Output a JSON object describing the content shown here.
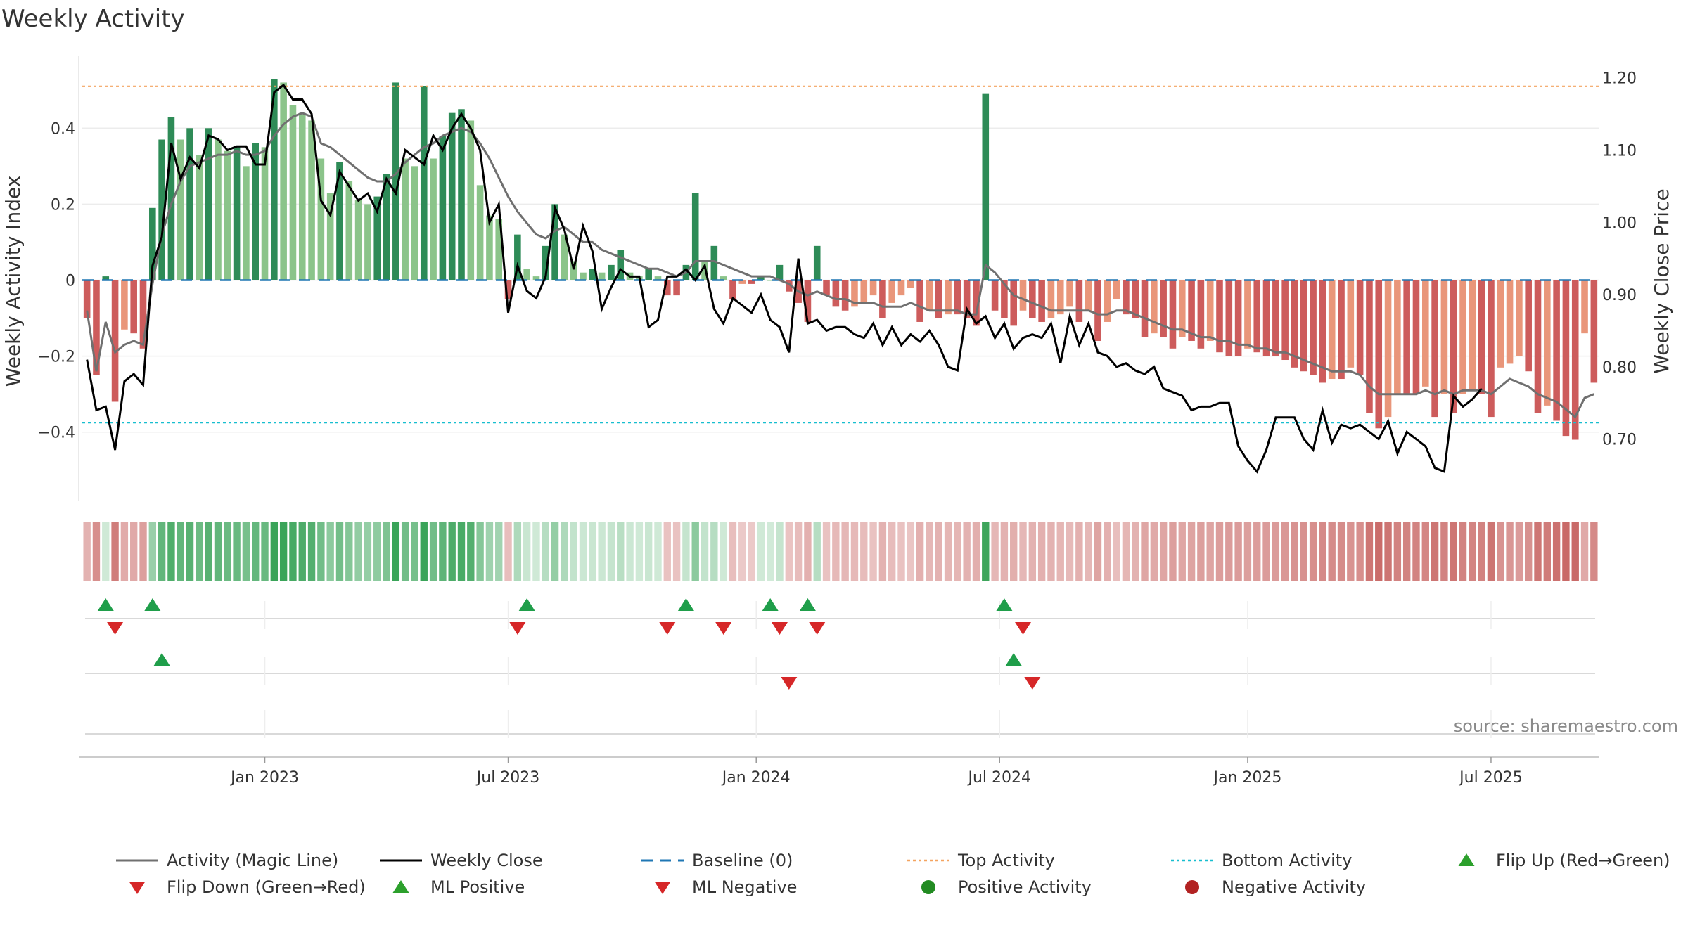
{
  "chart_data": {
    "type": "bar",
    "title": "Weekly Activity",
    "source": "source: sharemaestro.com",
    "ylabel": "Weekly Activity Index",
    "y2label": "Weekly Close Price",
    "ylim": [
      -0.58,
      0.58
    ],
    "y2lim": [
      0.615,
      1.225
    ],
    "yticks": [
      {
        "value": 0.4,
        "label": "0.4"
      },
      {
        "value": 0.2,
        "label": "0.2"
      },
      {
        "value": 0,
        "label": "0"
      },
      {
        "value": -0.2,
        "label": "−0.2"
      },
      {
        "value": -0.4,
        "label": "−0.4"
      }
    ],
    "y2ticks": [
      {
        "value": 1.2,
        "label": "1.20"
      },
      {
        "value": 1.1,
        "label": "1.10"
      },
      {
        "value": 1.0,
        "label": "1.00"
      },
      {
        "value": 0.9,
        "label": "0.90"
      },
      {
        "value": 0.8,
        "label": "0.80"
      },
      {
        "value": 0.7,
        "label": "0.70"
      }
    ],
    "xticks": [
      {
        "week": 19,
        "label": "Jan 2023"
      },
      {
        "week": 45,
        "label": "Jul 2023"
      },
      {
        "week": 71.5,
        "label": "Jan 2024"
      },
      {
        "week": 97.5,
        "label": "Jul 2024"
      },
      {
        "week": 124,
        "label": "Jan 2025"
      },
      {
        "week": 150,
        "label": "Jul 2025"
      }
    ],
    "top_activity": 0.51,
    "bottom_activity": -0.375,
    "baseline": 0,
    "activity": [
      -0.1,
      -0.25,
      0.01,
      -0.32,
      -0.13,
      -0.14,
      -0.18,
      0.19,
      0.37,
      0.43,
      0.37,
      0.4,
      0.33,
      0.4,
      0.37,
      0.34,
      0.35,
      0.3,
      0.36,
      0.35,
      0.53,
      0.52,
      0.46,
      0.44,
      0.42,
      0.32,
      0.23,
      0.31,
      0.26,
      0.21,
      0.2,
      0.22,
      0.28,
      0.52,
      0.32,
      0.3,
      0.51,
      0.32,
      0.38,
      0.44,
      0.45,
      0.42,
      0.25,
      0.17,
      0.16,
      -0.05,
      0.12,
      0.03,
      0.01,
      0.09,
      0.2,
      0.12,
      0.05,
      0.02,
      0.03,
      0.02,
      0.04,
      0.08,
      0.02,
      0.01,
      0.03,
      0.01,
      -0.04,
      -0.04,
      0.04,
      0.23,
      0.05,
      0.09,
      0.01,
      -0.05,
      -0.01,
      -0.01,
      0.01,
      0.0,
      0.04,
      -0.03,
      -0.06,
      -0.11,
      0.09,
      -0.04,
      -0.07,
      -0.08,
      -0.07,
      -0.06,
      -0.04,
      -0.1,
      -0.06,
      -0.04,
      -0.02,
      -0.11,
      -0.08,
      -0.1,
      -0.09,
      -0.09,
      -0.1,
      -0.12,
      0.49,
      -0.08,
      -0.1,
      -0.12,
      -0.08,
      -0.1,
      -0.11,
      -0.1,
      -0.09,
      -0.07,
      -0.11,
      -0.08,
      -0.16,
      -0.11,
      -0.05,
      -0.09,
      -0.1,
      -0.15,
      -0.14,
      -0.15,
      -0.18,
      -0.15,
      -0.16,
      -0.18,
      -0.16,
      -0.19,
      -0.2,
      -0.2,
      -0.18,
      -0.19,
      -0.2,
      -0.2,
      -0.21,
      -0.23,
      -0.24,
      -0.25,
      -0.27,
      -0.26,
      -0.26,
      -0.23,
      -0.25,
      -0.35,
      -0.39,
      -0.36,
      -0.3,
      -0.3,
      -0.3,
      -0.28,
      -0.36,
      -0.3,
      -0.35,
      -0.3,
      -0.29,
      -0.3,
      -0.36,
      -0.23,
      -0.22,
      -0.2,
      -0.24,
      -0.35,
      -0.33,
      -0.37,
      -0.41,
      -0.42,
      -0.14,
      -0.27
    ],
    "magic_line": [
      -0.08,
      -0.24,
      -0.11,
      -0.19,
      -0.17,
      -0.16,
      -0.17,
      -0.01,
      0.12,
      0.2,
      0.26,
      0.3,
      0.31,
      0.32,
      0.33,
      0.33,
      0.34,
      0.33,
      0.33,
      0.34,
      0.38,
      0.41,
      0.43,
      0.44,
      0.43,
      0.36,
      0.35,
      0.33,
      0.31,
      0.29,
      0.27,
      0.26,
      0.26,
      0.28,
      0.31,
      0.33,
      0.35,
      0.36,
      0.38,
      0.39,
      0.4,
      0.39,
      0.36,
      0.32,
      0.27,
      0.22,
      0.18,
      0.15,
      0.12,
      0.11,
      0.13,
      0.14,
      0.12,
      0.1,
      0.1,
      0.08,
      0.07,
      0.06,
      0.05,
      0.04,
      0.03,
      0.03,
      0.02,
      0.01,
      0.02,
      0.05,
      0.05,
      0.05,
      0.04,
      0.03,
      0.02,
      0.01,
      0.01,
      0.01,
      0.0,
      -0.01,
      -0.03,
      -0.04,
      -0.03,
      -0.04,
      -0.05,
      -0.05,
      -0.06,
      -0.06,
      -0.06,
      -0.07,
      -0.07,
      -0.07,
      -0.06,
      -0.07,
      -0.08,
      -0.08,
      -0.08,
      -0.08,
      -0.09,
      -0.09,
      0.04,
      0.02,
      -0.01,
      -0.04,
      -0.05,
      -0.06,
      -0.07,
      -0.08,
      -0.08,
      -0.08,
      -0.08,
      -0.08,
      -0.09,
      -0.09,
      -0.08,
      -0.08,
      -0.09,
      -0.1,
      -0.11,
      -0.12,
      -0.13,
      -0.13,
      -0.14,
      -0.15,
      -0.15,
      -0.16,
      -0.16,
      -0.17,
      -0.17,
      -0.18,
      -0.18,
      -0.19,
      -0.19,
      -0.2,
      -0.21,
      -0.22,
      -0.23,
      -0.24,
      -0.24,
      -0.24,
      -0.25,
      -0.28,
      -0.3,
      -0.3,
      -0.3,
      -0.3,
      -0.3,
      -0.29,
      -0.3,
      -0.29,
      -0.3,
      -0.29,
      -0.29,
      -0.29,
      -0.3,
      -0.28,
      -0.26,
      -0.27,
      -0.28,
      -0.3,
      -0.31,
      -0.32,
      -0.34,
      -0.36,
      -0.31,
      -0.3
    ],
    "weekly_close": [
      0.81,
      0.74,
      0.745,
      0.685,
      0.78,
      0.79,
      0.775,
      0.94,
      0.98,
      1.11,
      1.06,
      1.09,
      1.075,
      1.12,
      1.115,
      1.1,
      1.105,
      1.105,
      1.08,
      1.08,
      1.18,
      1.19,
      1.17,
      1.17,
      1.15,
      1.03,
      1.01,
      1.07,
      1.05,
      1.03,
      1.04,
      1.015,
      1.06,
      1.04,
      1.1,
      1.09,
      1.08,
      1.12,
      1.1,
      1.13,
      1.15,
      1.13,
      1.1,
      1.0,
      1.025,
      0.875,
      0.94,
      0.905,
      0.895,
      0.925,
      1.02,
      0.99,
      0.935,
      0.995,
      0.96,
      0.88,
      0.91,
      0.935,
      0.925,
      0.925,
      0.855,
      0.865,
      0.925,
      0.925,
      0.935,
      0.92,
      0.94,
      0.88,
      0.86,
      0.895,
      0.885,
      0.875,
      0.9,
      0.865,
      0.855,
      0.82,
      0.95,
      0.86,
      0.865,
      0.85,
      0.855,
      0.855,
      0.845,
      0.84,
      0.86,
      0.83,
      0.855,
      0.83,
      0.845,
      0.835,
      0.85,
      0.83,
      0.8,
      0.795,
      0.88,
      0.86,
      0.87,
      0.84,
      0.86,
      0.825,
      0.84,
      0.845,
      0.84,
      0.86,
      0.805,
      0.87,
      0.83,
      0.86,
      0.82,
      0.815,
      0.8,
      0.805,
      0.795,
      0.79,
      0.8,
      0.77,
      0.765,
      0.76,
      0.74,
      0.745,
      0.745,
      0.75,
      0.75,
      0.69,
      0.67,
      0.655,
      0.685,
      0.73,
      0.73,
      0.73,
      0.7,
      0.685,
      0.74,
      0.695,
      0.72,
      0.715,
      0.72,
      0.71,
      0.7,
      0.725,
      0.68,
      0.71,
      0.7,
      0.69,
      0.66,
      0.655,
      0.76,
      0.745,
      0.755,
      0.77
    ],
    "flip_up": [
      2,
      7,
      47,
      64,
      73,
      77,
      98
    ],
    "flip_down": [
      3,
      46,
      62,
      68,
      74,
      78,
      100
    ],
    "ml_positive": [
      8,
      99
    ],
    "ml_negative": [
      75,
      101
    ],
    "legend": [
      {
        "label": "Activity (Magic Line)",
        "marker": "line",
        "color": "#707070"
      },
      {
        "label": "Weekly Close",
        "marker": "line",
        "color": "#000000"
      },
      {
        "label": "Baseline (0)",
        "marker": "dashed",
        "color": "#1f77b4"
      },
      {
        "label": "Top Activity",
        "marker": "dotted",
        "color": "#f4a460"
      },
      {
        "label": "Bottom Activity",
        "marker": "dotted",
        "color": "#17becf"
      },
      {
        "label": "Flip Up (Red→Green)",
        "marker": "triangle-up",
        "color": "#2ca02c"
      },
      {
        "label": "Flip Down (Green→Red)",
        "marker": "triangle-down",
        "color": "#d62728"
      },
      {
        "label": "ML Positive",
        "marker": "triangle-up",
        "color": "#2ca02c"
      },
      {
        "label": "ML Negative",
        "marker": "triangle-down",
        "color": "#d62728"
      },
      {
        "label": "Positive Activity",
        "marker": "circle",
        "color": "#228b22"
      },
      {
        "label": "Negative Activity",
        "marker": "circle",
        "color": "#b22222"
      }
    ],
    "colors": {
      "pos_strong": "#2e8b57",
      "pos_light": "#8bc48a",
      "neg_strong": "#cd5c5c",
      "neg_light": "#e9967a",
      "top_line": "#f4a460",
      "bottom_line": "#17becf",
      "baseline": "#1f77b4",
      "magic_line": "#707070",
      "close_line": "#000000"
    }
  }
}
